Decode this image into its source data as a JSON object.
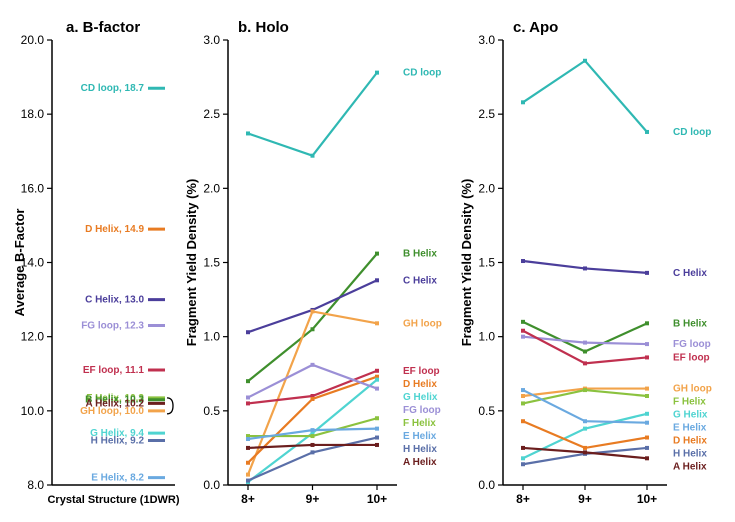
{
  "background_color": "#ffffff",
  "panel_a": {
    "title": "a. B-factor",
    "title_fontsize": 15,
    "ylabel": "Average B-Factor",
    "ylim": [
      8.0,
      20.0
    ],
    "yticks": [
      8.0,
      10.0,
      12.0,
      14.0,
      16.0,
      18.0,
      20.0
    ],
    "xlabel": "Crystal Structure (1DWR)",
    "items": [
      {
        "label": "CD loop, 18.7",
        "value": 18.7,
        "color": "#2fb8b3"
      },
      {
        "label": "D Helix, 14.9",
        "value": 14.9,
        "color": "#e87b22"
      },
      {
        "label": "C Helix, 13.0",
        "value": 13.0,
        "color": "#4b3e9b"
      },
      {
        "label": "FG loop, 12.3",
        "value": 12.3,
        "color": "#9b8fd6"
      },
      {
        "label": "EF loop, 11.1",
        "value": 11.1,
        "color": "#c0304f"
      },
      {
        "label": "F  Helix, 10.3",
        "value": 10.35,
        "color": "#8bc23f"
      },
      {
        "label": "B Helix, 10.3",
        "value": 10.3,
        "color": "#3f8f2d"
      },
      {
        "label": "A Helix, 10.2",
        "value": 10.2,
        "color": "#6b1e1e"
      },
      {
        "label": "GH loop, 10.0",
        "value": 10.0,
        "color": "#f2a34a"
      },
      {
        "label": "G Helix, 9.4",
        "value": 9.4,
        "color": "#4fd4d1"
      },
      {
        "label": "H Helix, 9.2",
        "value": 9.2,
        "color": "#5a6fa8"
      },
      {
        "label": "E Helix, 8.2",
        "value": 8.2,
        "color": "#6aa9e0"
      }
    ],
    "bracket": {
      "y_top": 10.35,
      "y_bot": 10.0,
      "color": "#000000"
    }
  },
  "panel_b": {
    "title": "b. Holo",
    "title_fontsize": 15,
    "ylabel": "Fragment Yield Density (%)",
    "ylim": [
      0.0,
      3.0
    ],
    "yticks": [
      0.0,
      0.5,
      1.0,
      1.5,
      2.0,
      2.5,
      3.0
    ],
    "xcats": [
      "8+",
      "9+",
      "10+"
    ],
    "series": [
      {
        "name": "CD loop",
        "color": "#2fb8b3",
        "values": [
          2.37,
          2.22,
          2.78
        ]
      },
      {
        "name": "B Helix",
        "color": "#3f8f2d",
        "values": [
          0.7,
          1.05,
          1.56
        ]
      },
      {
        "name": "C Helix",
        "color": "#4b3e9b",
        "values": [
          1.03,
          1.18,
          1.38
        ]
      },
      {
        "name": "GH loop",
        "color": "#f2a34a",
        "values": [
          0.07,
          1.17,
          1.09
        ]
      },
      {
        "name": "EF loop",
        "color": "#c0304f",
        "values": [
          0.55,
          0.6,
          0.77
        ]
      },
      {
        "name": "D Helix",
        "color": "#e87b22",
        "values": [
          0.15,
          0.58,
          0.73
        ]
      },
      {
        "name": "G Helix",
        "color": "#4fd4d1",
        "values": [
          0.02,
          0.35,
          0.71
        ]
      },
      {
        "name": "FG loop",
        "color": "#9b8fd6",
        "values": [
          0.59,
          0.81,
          0.65
        ]
      },
      {
        "name": "F  Helix",
        "color": "#8bc23f",
        "values": [
          0.33,
          0.33,
          0.45
        ]
      },
      {
        "name": "E Helix",
        "color": "#6aa9e0",
        "values": [
          0.31,
          0.37,
          0.38
        ]
      },
      {
        "name": "H Helix",
        "color": "#5a6fa8",
        "values": [
          0.03,
          0.22,
          0.32
        ]
      },
      {
        "name": "A Helix",
        "color": "#6b1e1e",
        "values": [
          0.25,
          0.27,
          0.27
        ]
      }
    ],
    "label_order": [
      "CD loop",
      "B Helix",
      "C Helix",
      "GH loop",
      "EF loop",
      "D Helix",
      "G Helix",
      "FG loop",
      "F  Helix",
      "E Helix",
      "H Helix",
      "A Helix"
    ]
  },
  "panel_c": {
    "title": "c. Apo",
    "title_fontsize": 15,
    "ylabel": "Fragment Yield Density (%)",
    "ylim": [
      0.0,
      3.0
    ],
    "yticks": [
      0.0,
      0.5,
      1.0,
      1.5,
      2.0,
      2.5,
      3.0
    ],
    "xcats": [
      "8+",
      "9+",
      "10+"
    ],
    "series": [
      {
        "name": "CD loop",
        "color": "#2fb8b3",
        "values": [
          2.58,
          2.86,
          2.38
        ]
      },
      {
        "name": "C Helix",
        "color": "#4b3e9b",
        "values": [
          1.51,
          1.46,
          1.43
        ]
      },
      {
        "name": "B Helix",
        "color": "#3f8f2d",
        "values": [
          1.1,
          0.9,
          1.09
        ]
      },
      {
        "name": "FG loop",
        "color": "#9b8fd6",
        "values": [
          1.0,
          0.96,
          0.95
        ]
      },
      {
        "name": "EF loop",
        "color": "#c0304f",
        "values": [
          1.04,
          0.82,
          0.86
        ]
      },
      {
        "name": "GH loop",
        "color": "#f2a34a",
        "values": [
          0.6,
          0.65,
          0.65
        ]
      },
      {
        "name": "F  Helix",
        "color": "#8bc23f",
        "values": [
          0.55,
          0.64,
          0.6
        ]
      },
      {
        "name": "G Helix",
        "color": "#4fd4d1",
        "values": [
          0.18,
          0.38,
          0.48
        ]
      },
      {
        "name": "E Helix",
        "color": "#6aa9e0",
        "values": [
          0.64,
          0.43,
          0.42
        ]
      },
      {
        "name": "D Helix",
        "color": "#e87b22",
        "values": [
          0.43,
          0.25,
          0.32
        ]
      },
      {
        "name": "H Helix",
        "color": "#5a6fa8",
        "values": [
          0.14,
          0.21,
          0.25
        ]
      },
      {
        "name": "A Helix",
        "color": "#6b1e1e",
        "values": [
          0.25,
          0.22,
          0.18
        ]
      }
    ],
    "label_order": [
      "CD loop",
      "C Helix",
      "B Helix",
      "FG loop",
      "EF loop",
      "GH loop",
      "F  Helix",
      "G Helix",
      "E Helix",
      "D Helix",
      "H Helix",
      "A Helix"
    ]
  },
  "line_width": 2.2,
  "marker_size": 4,
  "label_fontsize": 10,
  "tick_fontsize": 12
}
